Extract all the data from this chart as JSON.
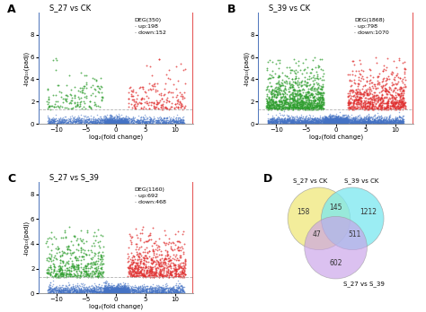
{
  "panels": [
    {
      "label": "A",
      "title": "S_27 vs CK",
      "deg_total": 350,
      "deg_up": 198,
      "deg_down": 152,
      "fc_thresh": 2,
      "pval_thresh": 1.3,
      "xlim": [
        -13,
        13
      ],
      "ylim": [
        0,
        10
      ],
      "yticks": [
        0,
        2,
        4,
        6,
        8
      ],
      "xticks": [
        -10,
        -5,
        0,
        5,
        10
      ],
      "n_blue": 2000,
      "n_red": 198,
      "n_green": 152
    },
    {
      "label": "B",
      "title": "S_39 vs CK",
      "deg_total": 1868,
      "deg_up": 798,
      "deg_down": 1070,
      "fc_thresh": 2,
      "pval_thresh": 1.3,
      "xlim": [
        -13,
        13
      ],
      "ylim": [
        0,
        10
      ],
      "yticks": [
        0,
        2,
        4,
        6,
        8
      ],
      "xticks": [
        -10,
        -5,
        0,
        5,
        10
      ],
      "n_blue": 4000,
      "n_red": 798,
      "n_green": 1070
    },
    {
      "label": "C",
      "title": "S_27 vs S_39",
      "deg_total": 1160,
      "deg_up": 692,
      "deg_down": 468,
      "fc_thresh": 2,
      "pval_thresh": 1.3,
      "xlim": [
        -13,
        13
      ],
      "ylim": [
        0,
        9
      ],
      "yticks": [
        0,
        2,
        4,
        6,
        8
      ],
      "xticks": [
        -10,
        -5,
        0,
        5,
        10
      ],
      "n_blue": 2800,
      "n_red": 692,
      "n_green": 468
    }
  ],
  "venn": {
    "label": "D",
    "sets": [
      "S_27 vs CK",
      "S_39 vs CK",
      "S_27 vs S_39"
    ],
    "values": {
      "only_A": 158,
      "only_B": 1212,
      "only_C": 602,
      "AB": 145,
      "AC": 47,
      "BC": 511
    },
    "colors": [
      "#f0e87a",
      "#7ae8f0",
      "#c8a0e8"
    ],
    "alphas": [
      0.75,
      0.75,
      0.65
    ]
  },
  "color_up": "#e03030",
  "color_down": "#2e9e2e",
  "color_ns": "#4472c4",
  "dashed_color": "#aaaaaa",
  "vline_color_right": "#e03030",
  "vline_color_left": "#4472c4"
}
